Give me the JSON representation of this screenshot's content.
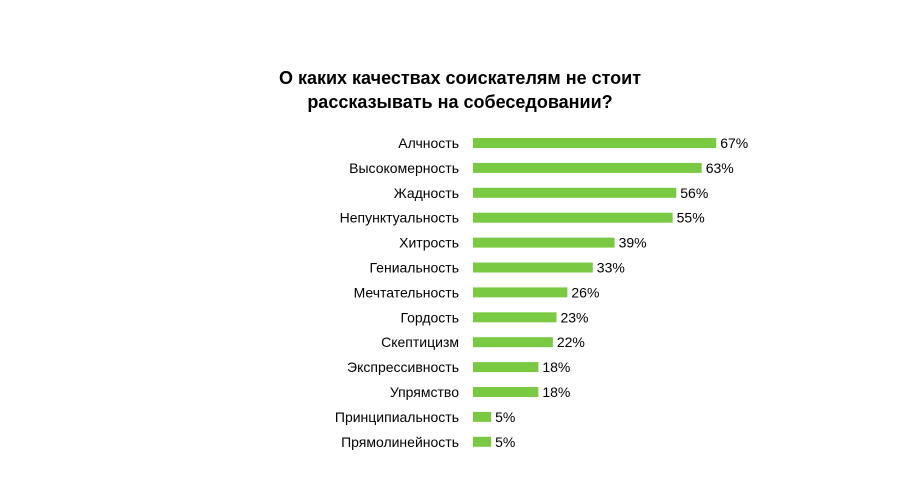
{
  "chart_data": {
    "type": "bar",
    "orientation": "horizontal",
    "title_lines": [
      "О каких качествах соискателям не стоит",
      "рассказывать на собеседовании?"
    ],
    "categories": [
      "Алчность",
      "Высокомерность",
      "Жадность",
      "Непунктуальность",
      "Хитрость",
      "Гениальность",
      "Мечтательность",
      "Гордость",
      "Скептицизм",
      "Экспрессивность",
      "Упрямство",
      "Принципиальность",
      "Прямолинейность"
    ],
    "values": [
      67,
      63,
      56,
      55,
      39,
      33,
      26,
      23,
      22,
      18,
      18,
      5,
      5
    ],
    "value_labels": [
      "67%",
      "63%",
      "56%",
      "55%",
      "39%",
      "33%",
      "26%",
      "23%",
      "22%",
      "18%",
      "18%",
      "5%",
      "5%"
    ],
    "unit": "%",
    "bar_color": "#7ac943",
    "xlim": [
      0,
      100
    ],
    "grid": false,
    "legend": "none"
  }
}
